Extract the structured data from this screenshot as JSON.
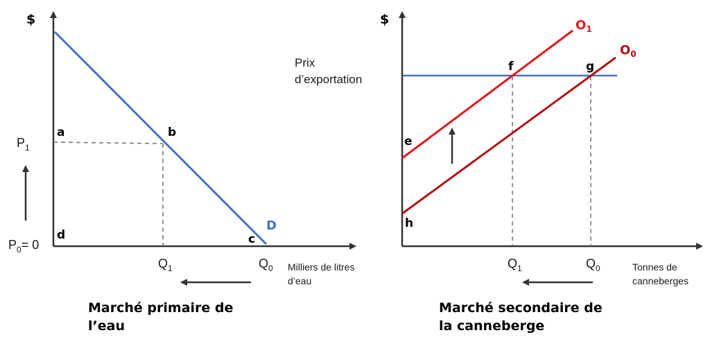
{
  "left": {
    "y_axis_label": "$",
    "p1": "P",
    "p1_sub": "1",
    "p0": "P",
    "p0_sub": "0",
    "p0_eq": "= 0",
    "q1": "Q",
    "q1_sub": "1",
    "q0": "Q",
    "q0_sub": "0",
    "x_axis_label_line1": "Milliers de litres",
    "x_axis_label_line2": "d’eau",
    "points": {
      "a": "a",
      "b": "b",
      "c": "c",
      "d": "d"
    },
    "demand_label": "D",
    "title_line1": "Marché primaire de",
    "title_line2": "l’eau"
  },
  "right": {
    "y_axis_label": "$",
    "price_label_line1": "Prix",
    "price_label_line2": "d’exportation",
    "o1": "O",
    "o1_sub": "1",
    "o0": "O",
    "o0_sub": "0",
    "q1": "Q",
    "q1_sub": "1",
    "q0": "Q",
    "q0_sub": "0",
    "x_axis_label_line1": "Tonnes de",
    "x_axis_label_line2": "canneberges",
    "points": {
      "e": "e",
      "f": "f",
      "g": "g",
      "h": "h"
    },
    "title_line1": "Marché secondaire de",
    "title_line2": "la canneberge"
  },
  "colors": {
    "demand": "#4472C4",
    "export_price": "#4472C4",
    "supply_o1": "#E8141A",
    "supply_o0": "#B30F12",
    "axis": "#333333"
  }
}
